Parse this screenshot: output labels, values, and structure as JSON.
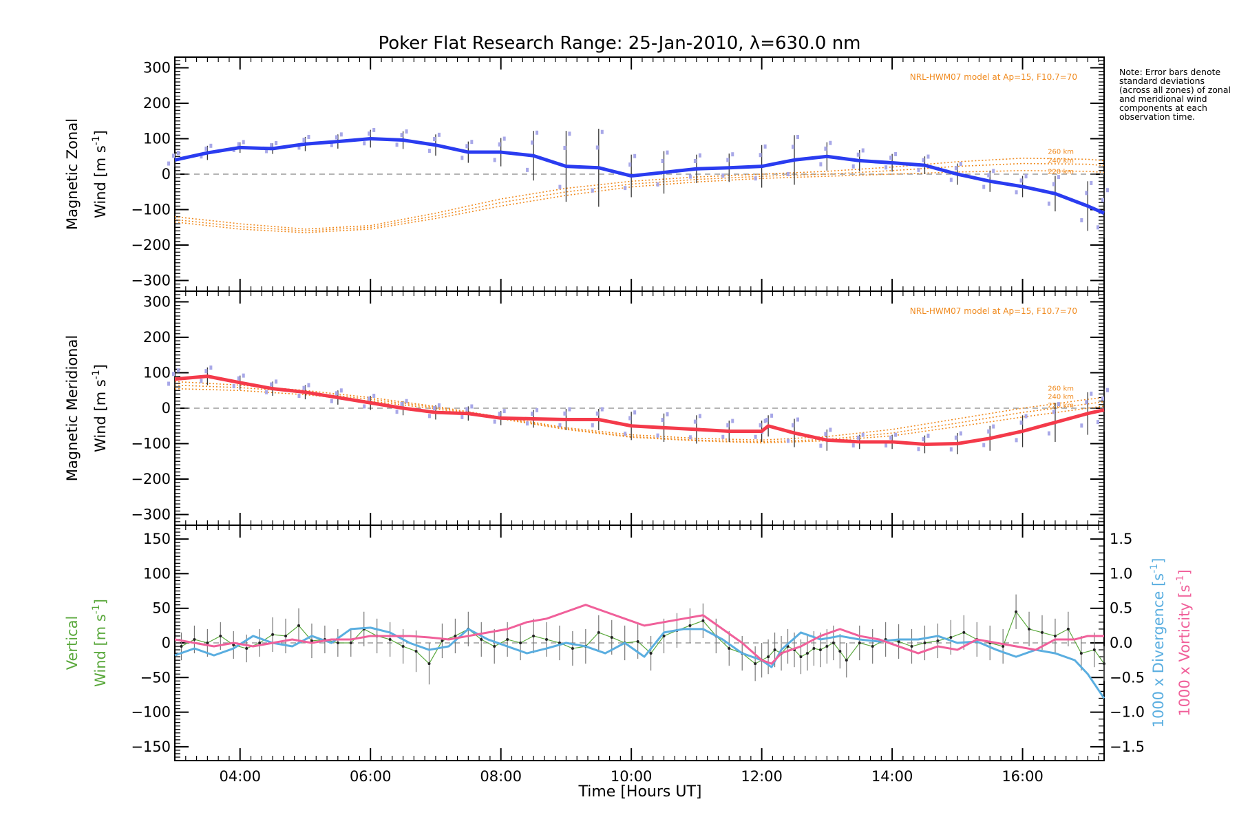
{
  "title": "Poker Flat Research Range: 25-Jan-2010, λ=630.0 nm",
  "note": "Note: Error bars denote standard deviations (across all zones) of zonal and meridional wind components at each observation time.",
  "colors": {
    "zonal": "#2a3cf0",
    "meridional": "#f43a4a",
    "model": "#f08a1e",
    "vertical": "#5aa83c",
    "divergence": "#5aaee0",
    "vorticity": "#f0609a",
    "zone_scatter": "#a8a8e8",
    "errorbar": "#333333"
  },
  "chart_data": [
    {
      "type": "line",
      "panel": "zonal",
      "ylabel_line1": "Magnetic Zonal",
      "ylabel_line2": "Wind [m s",
      "ylabel_sup": "-1",
      "ylabel_close": "]",
      "ylim": [
        -330,
        330
      ],
      "yticks": [
        -300,
        -200,
        -100,
        0,
        100,
        200,
        300
      ],
      "model_label": "NRL-HWM07 model at Ap=15, F10.7=70",
      "model_alt_labels": [
        "260 km",
        "240 km",
        "220 km"
      ],
      "x": [
        3.0,
        3.5,
        4.0,
        4.5,
        5.0,
        5.5,
        6.0,
        6.5,
        7.0,
        7.5,
        8.0,
        8.5,
        9.0,
        9.5,
        10.0,
        10.5,
        11.0,
        11.5,
        12.0,
        12.5,
        13.0,
        13.5,
        14.0,
        14.5,
        15.0,
        15.5,
        16.0,
        16.5,
        17.0,
        17.25
      ],
      "values": [
        40,
        60,
        75,
        72,
        85,
        92,
        100,
        96,
        82,
        62,
        62,
        52,
        22,
        18,
        -5,
        5,
        15,
        18,
        22,
        40,
        50,
        38,
        32,
        25,
        0,
        -20,
        -35,
        -55,
        -90,
        -110
      ],
      "errors": [
        20,
        20,
        15,
        15,
        20,
        20,
        25,
        25,
        30,
        30,
        40,
        70,
        100,
        110,
        60,
        60,
        40,
        40,
        60,
        70,
        40,
        30,
        25,
        25,
        30,
        30,
        30,
        50,
        70,
        70
      ],
      "model": [
        {
          "x": [
            3.0,
            4.0,
            5.0,
            6.0,
            7.0,
            8.0,
            9.0,
            10.0,
            11.0,
            12.0,
            13.0,
            14.0,
            15.0,
            16.0,
            17.0,
            17.25
          ],
          "y": [
            -120,
            -140,
            -155,
            -145,
            -110,
            -70,
            -40,
            -20,
            -8,
            0,
            8,
            20,
            35,
            45,
            42,
            38
          ]
        },
        {
          "x": [
            3.0,
            4.0,
            5.0,
            6.0,
            7.0,
            8.0,
            9.0,
            10.0,
            11.0,
            12.0,
            13.0,
            14.0,
            15.0,
            16.0,
            17.0,
            17.25
          ],
          "y": [
            -128,
            -148,
            -160,
            -150,
            -118,
            -80,
            -50,
            -28,
            -15,
            -6,
            0,
            10,
            22,
            30,
            28,
            24
          ]
        },
        {
          "x": [
            3.0,
            4.0,
            5.0,
            6.0,
            7.0,
            8.0,
            9.0,
            10.0,
            11.0,
            12.0,
            13.0,
            14.0,
            15.0,
            16.0,
            17.0,
            17.25
          ],
          "y": [
            -135,
            -155,
            -165,
            -155,
            -125,
            -90,
            -60,
            -36,
            -22,
            -12,
            -6,
            0,
            6,
            10,
            8,
            5
          ]
        }
      ]
    },
    {
      "type": "line",
      "panel": "meridional",
      "ylabel_line1": "Magnetic Meridional",
      "ylabel_line2": "Wind [m s",
      "ylabel_sup": "-1",
      "ylabel_close": "]",
      "ylim": [
        -330,
        330
      ],
      "yticks": [
        -300,
        -200,
        -100,
        0,
        100,
        200,
        300
      ],
      "model_label": "NRL-HWM07 model at Ap=15, F10.7=70",
      "model_alt_labels": [
        "260 km",
        "240 km",
        "220 km"
      ],
      "x": [
        3.0,
        3.5,
        4.0,
        4.5,
        5.0,
        5.5,
        6.0,
        6.5,
        7.0,
        7.5,
        8.0,
        8.5,
        9.0,
        9.5,
        10.0,
        10.5,
        11.0,
        11.5,
        12.0,
        12.1,
        12.5,
        13.0,
        13.5,
        14.0,
        14.5,
        15.0,
        15.5,
        16.0,
        16.5,
        17.0,
        17.25
      ],
      "values": [
        82,
        90,
        72,
        55,
        45,
        30,
        15,
        0,
        -12,
        -15,
        -28,
        -30,
        -32,
        -32,
        -50,
        -55,
        -60,
        -65,
        -65,
        -50,
        -70,
        -90,
        -95,
        -95,
        -102,
        -100,
        -85,
        -65,
        -40,
        -15,
        -5
      ],
      "errors": [
        25,
        25,
        20,
        20,
        20,
        20,
        20,
        20,
        20,
        20,
        20,
        25,
        30,
        30,
        40,
        40,
        40,
        30,
        30,
        30,
        40,
        30,
        20,
        20,
        25,
        30,
        35,
        45,
        55,
        60,
        60
      ],
      "model": [
        {
          "x": [
            3.0,
            4.0,
            5.0,
            6.0,
            7.0,
            8.0,
            9.0,
            10.0,
            11.0,
            12.0,
            13.0,
            14.0,
            15.0,
            16.0,
            17.0,
            17.25
          ],
          "y": [
            75,
            65,
            50,
            30,
            5,
            -25,
            -55,
            -75,
            -85,
            -90,
            -80,
            -60,
            -30,
            0,
            25,
            30
          ]
        },
        {
          "x": [
            3.0,
            4.0,
            5.0,
            6.0,
            7.0,
            8.0,
            9.0,
            10.0,
            11.0,
            12.0,
            13.0,
            14.0,
            15.0,
            16.0,
            17.0,
            17.25
          ],
          "y": [
            65,
            58,
            45,
            25,
            2,
            -28,
            -58,
            -80,
            -90,
            -95,
            -88,
            -70,
            -42,
            -12,
            12,
            18
          ]
        },
        {
          "x": [
            3.0,
            4.0,
            5.0,
            6.0,
            7.0,
            8.0,
            9.0,
            10.0,
            11.0,
            12.0,
            13.0,
            14.0,
            15.0,
            16.0,
            17.0,
            17.25
          ],
          "y": [
            55,
            50,
            38,
            20,
            -2,
            -30,
            -60,
            -82,
            -92,
            -98,
            -92,
            -78,
            -52,
            -25,
            0,
            6
          ]
        }
      ]
    },
    {
      "type": "line",
      "panel": "vertical",
      "ylabel_line1": "Vertical",
      "ylabel_line2": "Wind [m s",
      "ylabel_sup": "-1",
      "ylabel_close": "]",
      "ylim": [
        -170,
        170
      ],
      "yticks": [
        -150,
        -100,
        -50,
        0,
        50,
        100,
        150
      ],
      "y2lim": [
        -1.7,
        1.7
      ],
      "y2ticks": [
        -1.5,
        -1.0,
        -0.5,
        0.0,
        0.5,
        1.0,
        1.5
      ],
      "y2tick_labels": [
        "-1.5",
        "-1.0",
        "-0.5",
        "0.0",
        "0.5",
        "1.0",
        "1.5"
      ],
      "y2label_div": "1000 x Divergence [s",
      "y2label_vor": "1000 x Vorticity [s",
      "y2label_sup": "-1",
      "y2label_close": "]",
      "x_ticks": [
        4,
        6,
        8,
        10,
        12,
        14,
        16
      ],
      "x_tick_labels": [
        "04:00",
        "06:00",
        "08:00",
        "10:00",
        "12:00",
        "14:00",
        "16:00"
      ],
      "xlabel": "Time [Hours UT]",
      "xlim": [
        3.0,
        17.25
      ],
      "series": [
        {
          "name": "Vertical wind",
          "x": [
            3.1,
            3.3,
            3.5,
            3.7,
            3.9,
            4.1,
            4.3,
            4.5,
            4.7,
            4.9,
            5.1,
            5.3,
            5.5,
            5.7,
            5.9,
            6.1,
            6.3,
            6.5,
            6.7,
            6.9,
            7.1,
            7.3,
            7.5,
            7.7,
            7.9,
            8.1,
            8.3,
            8.5,
            8.7,
            8.9,
            9.1,
            9.3,
            9.5,
            9.7,
            9.9,
            10.1,
            10.3,
            10.5,
            10.7,
            10.9,
            11.1,
            11.3,
            11.5,
            11.7,
            11.9,
            12.0,
            12.1,
            12.2,
            12.3,
            12.4,
            12.5,
            12.6,
            12.7,
            12.8,
            12.9,
            13.0,
            13.1,
            13.2,
            13.3,
            13.5,
            13.7,
            13.9,
            14.1,
            14.3,
            14.5,
            14.7,
            14.9,
            15.1,
            15.3,
            15.5,
            15.7,
            15.9,
            16.1,
            16.3,
            16.5,
            16.7,
            16.9,
            17.1,
            17.25
          ],
          "values": [
            -5,
            5,
            0,
            10,
            -3,
            -8,
            0,
            12,
            10,
            25,
            3,
            5,
            0,
            0,
            20,
            10,
            5,
            -5,
            -12,
            -30,
            3,
            10,
            20,
            5,
            -5,
            5,
            0,
            10,
            5,
            0,
            -8,
            -5,
            15,
            8,
            0,
            2,
            -15,
            10,
            18,
            25,
            32,
            10,
            -8,
            -15,
            -30,
            -25,
            -20,
            -10,
            -15,
            -5,
            -10,
            -20,
            -15,
            -8,
            -10,
            -5,
            0,
            -12,
            -25,
            0,
            -5,
            5,
            2,
            -5,
            0,
            3,
            8,
            15,
            5,
            0,
            -5,
            45,
            20,
            15,
            10,
            20,
            -15,
            -10,
            -30
          ],
          "errors": [
            20,
            20,
            20,
            20,
            20,
            20,
            20,
            25,
            25,
            25,
            25,
            20,
            20,
            20,
            25,
            25,
            25,
            25,
            30,
            30,
            25,
            25,
            25,
            25,
            25,
            25,
            25,
            25,
            25,
            25,
            25,
            25,
            25,
            25,
            25,
            25,
            25,
            25,
            25,
            25,
            25,
            25,
            25,
            25,
            25,
            25,
            25,
            25,
            25,
            25,
            25,
            25,
            25,
            25,
            25,
            25,
            25,
            25,
            25,
            25,
            25,
            25,
            25,
            25,
            25,
            25,
            25,
            25,
            25,
            25,
            25,
            25,
            25,
            25,
            25,
            25,
            25,
            25,
            25
          ]
        },
        {
          "name": "1000 x Divergence",
          "axis": "right",
          "x": [
            3.0,
            3.3,
            3.6,
            3.9,
            4.2,
            4.5,
            4.8,
            5.1,
            5.4,
            5.7,
            6.0,
            6.3,
            6.6,
            6.9,
            7.2,
            7.5,
            7.8,
            8.1,
            8.4,
            8.7,
            9.0,
            9.3,
            9.6,
            9.9,
            10.2,
            10.5,
            10.8,
            11.1,
            11.4,
            11.7,
            12.0,
            12.15,
            12.3,
            12.6,
            12.9,
            13.2,
            13.5,
            13.8,
            14.1,
            14.4,
            14.7,
            15.0,
            15.3,
            15.6,
            15.9,
            16.2,
            16.5,
            16.8,
            17.0,
            17.25
          ],
          "values": [
            -0.18,
            -0.08,
            -0.18,
            -0.08,
            0.1,
            0.0,
            -0.05,
            0.1,
            0.0,
            0.2,
            0.22,
            0.15,
            0.0,
            -0.1,
            -0.05,
            0.2,
            0.05,
            -0.05,
            -0.15,
            -0.08,
            0.0,
            -0.05,
            -0.15,
            0.0,
            -0.2,
            0.15,
            0.2,
            0.2,
            0.05,
            -0.15,
            -0.25,
            -0.35,
            -0.1,
            0.15,
            0.05,
            0.1,
            0.05,
            0.02,
            0.05,
            0.05,
            0.1,
            0.0,
            0.02,
            -0.1,
            -0.2,
            -0.1,
            -0.15,
            -0.25,
            -0.45,
            -0.8
          ]
        },
        {
          "name": "1000 x Vorticity",
          "axis": "right",
          "x": [
            3.0,
            3.3,
            3.6,
            3.9,
            4.2,
            4.5,
            4.8,
            5.1,
            5.4,
            5.7,
            6.0,
            6.3,
            6.6,
            6.9,
            7.2,
            7.5,
            7.8,
            8.1,
            8.4,
            8.7,
            9.0,
            9.3,
            9.6,
            9.9,
            10.2,
            10.5,
            10.8,
            11.1,
            11.4,
            11.7,
            12.0,
            12.15,
            12.3,
            12.6,
            12.9,
            13.2,
            13.5,
            13.8,
            14.1,
            14.4,
            14.7,
            15.0,
            15.3,
            15.6,
            15.9,
            16.2,
            16.5,
            16.8,
            17.0,
            17.25
          ],
          "values": [
            0.05,
            0.0,
            -0.05,
            0.0,
            -0.05,
            0.0,
            0.05,
            0.0,
            0.05,
            0.05,
            0.1,
            0.1,
            0.1,
            0.08,
            0.05,
            0.1,
            0.15,
            0.2,
            0.3,
            0.35,
            0.45,
            0.55,
            0.45,
            0.35,
            0.25,
            0.3,
            0.35,
            0.4,
            0.2,
            0.0,
            -0.25,
            -0.3,
            -0.15,
            -0.05,
            0.1,
            0.2,
            0.1,
            0.05,
            -0.05,
            -0.15,
            -0.05,
            -0.1,
            0.05,
            0.0,
            -0.05,
            -0.1,
            0.05,
            0.05,
            0.1,
            0.1
          ]
        }
      ]
    }
  ]
}
